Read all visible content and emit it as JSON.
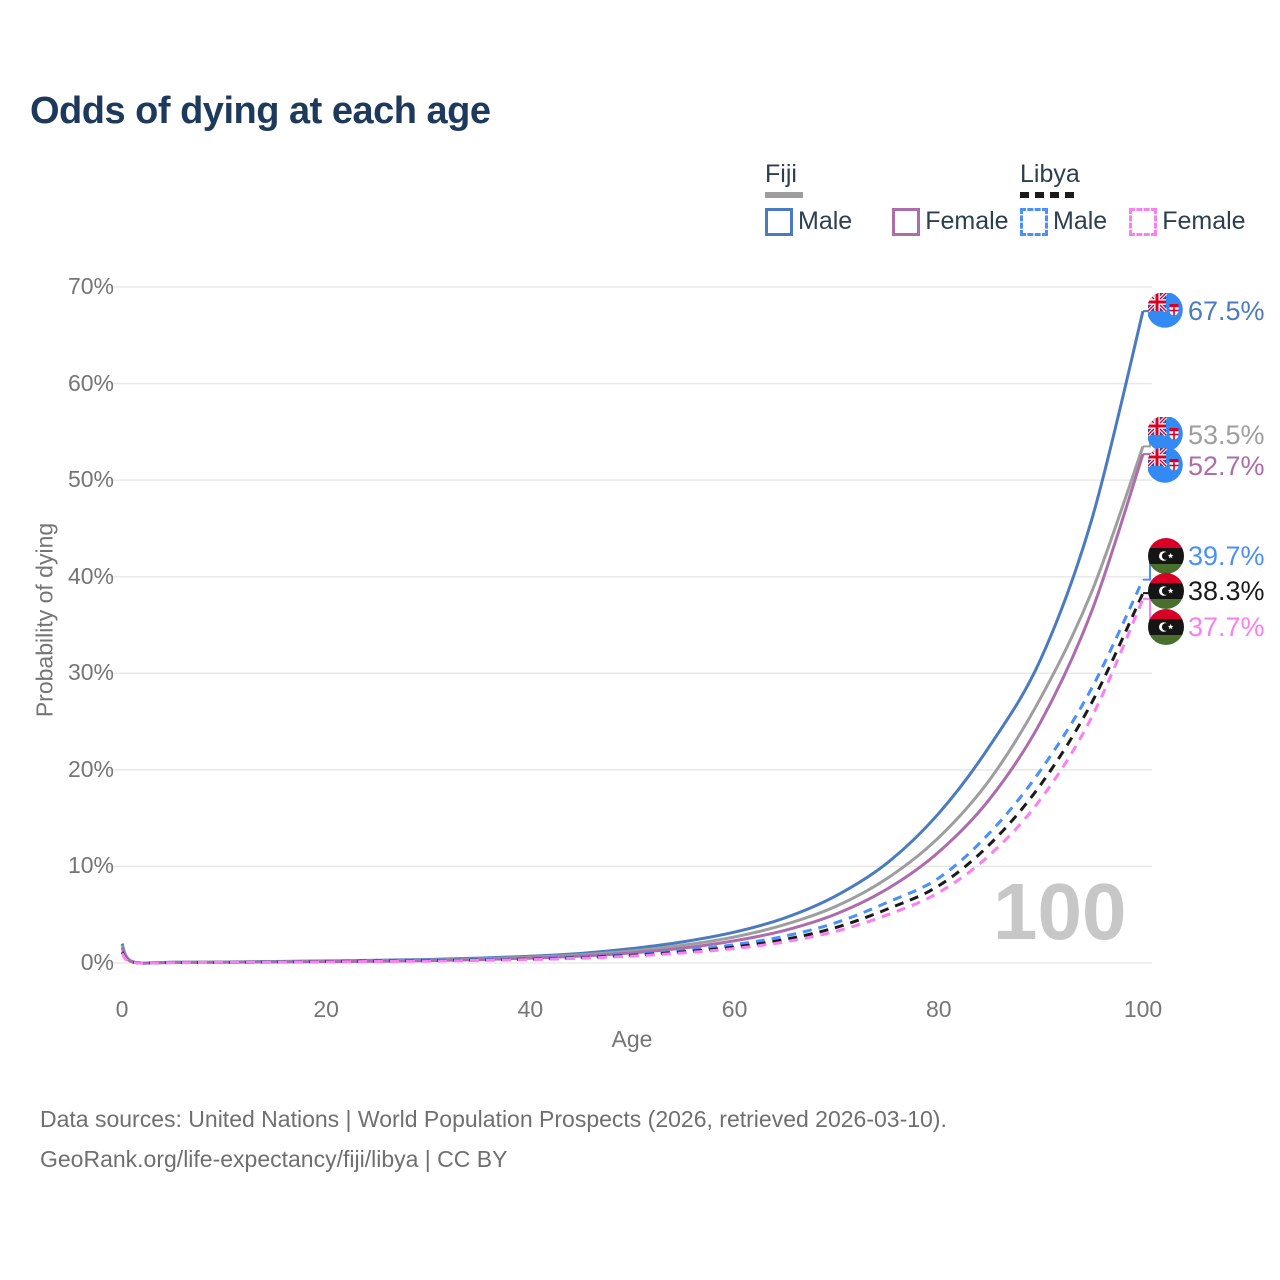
{
  "title": "Odds of dying at each age",
  "legend": {
    "fiji": {
      "label": "Fiji",
      "male": "Male",
      "female": "Female"
    },
    "libya": {
      "label": "Libya",
      "male": "Male",
      "female": "Female"
    }
  },
  "watermark": "100",
  "footer": {
    "line1": "Data sources: United Nations | World Population Prospects (2026, retrieved 2026-03-10).",
    "line2": "GeoRank.org/life-expectancy/fiji/libya | CC BY"
  },
  "colors": {
    "title_text": "#1d3a5c",
    "legend_text": "#2c3e50",
    "axis_text": "#757575",
    "gridline": "#e8e8e8",
    "watermark": "#c7c7c7",
    "footer_text": "#6f6f6f",
    "fiji_underline": "#9e9e9e",
    "libya_underline": "#1a1a1a"
  },
  "chart_data": {
    "type": "line",
    "title": "Odds of dying at each age",
    "xlabel": "Age",
    "ylabel": "Probability of dying",
    "xlim": [
      0,
      100
    ],
    "ylim": [
      0,
      70
    ],
    "x_ticks": [
      0,
      20,
      40,
      60,
      80,
      100
    ],
    "y_ticks": [
      "0%",
      "10%",
      "20%",
      "30%",
      "40%",
      "50%",
      "60%",
      "70%"
    ],
    "grid": true,
    "legend_position": "top-right",
    "x": [
      0,
      1,
      5,
      10,
      15,
      20,
      25,
      30,
      35,
      40,
      45,
      50,
      55,
      60,
      65,
      70,
      75,
      80,
      85,
      90,
      95,
      100
    ],
    "series": [
      {
        "name": "Fiji Male",
        "country": "fiji",
        "sex": "male",
        "line_style": "solid",
        "color": "#4a7abf",
        "end_label": "67.5%",
        "end_value": 67.5,
        "values": [
          2.0,
          0.15,
          0.08,
          0.1,
          0.16,
          0.22,
          0.28,
          0.36,
          0.5,
          0.7,
          1.0,
          1.5,
          2.2,
          3.2,
          4.7,
          7.0,
          10.4,
          15.5,
          22.5,
          31.5,
          46.0,
          67.5
        ]
      },
      {
        "name": "Fiji Both sexes",
        "country": "fiji",
        "sex": "both",
        "line_style": "solid",
        "color": "#9e9e9e",
        "end_label": "53.5%",
        "end_value": 53.5,
        "values": [
          1.8,
          0.13,
          0.07,
          0.09,
          0.13,
          0.18,
          0.23,
          0.3,
          0.42,
          0.6,
          0.85,
          1.25,
          1.85,
          2.7,
          4.0,
          5.9,
          8.8,
          13.0,
          19.0,
          27.5,
          38.5,
          53.5
        ]
      },
      {
        "name": "Fiji Female",
        "country": "fiji",
        "sex": "female",
        "line_style": "solid",
        "color": "#ad6cac",
        "end_label": "52.7%",
        "end_value": 52.7,
        "values": [
          1.6,
          0.12,
          0.06,
          0.08,
          0.11,
          0.14,
          0.18,
          0.25,
          0.35,
          0.5,
          0.72,
          1.05,
          1.55,
          2.3,
          3.4,
          5.1,
          7.7,
          11.5,
          17.0,
          25.0,
          36.5,
          52.7
        ]
      },
      {
        "name": "Libya Male",
        "country": "libya",
        "sex": "male",
        "line_style": "dashed",
        "color": "#4a90fa",
        "end_label": "39.7%",
        "end_value": 39.7,
        "values": [
          1.2,
          0.1,
          0.05,
          0.07,
          0.12,
          0.18,
          0.22,
          0.28,
          0.35,
          0.45,
          0.62,
          0.9,
          1.3,
          1.9,
          2.8,
          4.2,
          6.3,
          8.8,
          13.5,
          20.0,
          28.5,
          39.7
        ]
      },
      {
        "name": "Libya Both sexes",
        "country": "libya",
        "sex": "both",
        "line_style": "dashed",
        "color": "#1a1a1a",
        "end_label": "38.3%",
        "end_value": 38.3,
        "values": [
          1.1,
          0.09,
          0.05,
          0.06,
          0.1,
          0.15,
          0.19,
          0.24,
          0.3,
          0.4,
          0.55,
          0.8,
          1.15,
          1.65,
          2.45,
          3.7,
          5.6,
          8.0,
          12.3,
          18.5,
          27.0,
          38.3
        ]
      },
      {
        "name": "Libya Female",
        "country": "libya",
        "sex": "female",
        "line_style": "dashed",
        "color": "#fb7ef2",
        "end_label": "37.7%",
        "end_value": 37.7,
        "values": [
          1.0,
          0.08,
          0.04,
          0.06,
          0.09,
          0.12,
          0.16,
          0.2,
          0.27,
          0.36,
          0.5,
          0.72,
          1.05,
          1.5,
          2.2,
          3.3,
          5.0,
          7.3,
          11.2,
          17.0,
          25.5,
          37.7
        ]
      }
    ]
  }
}
